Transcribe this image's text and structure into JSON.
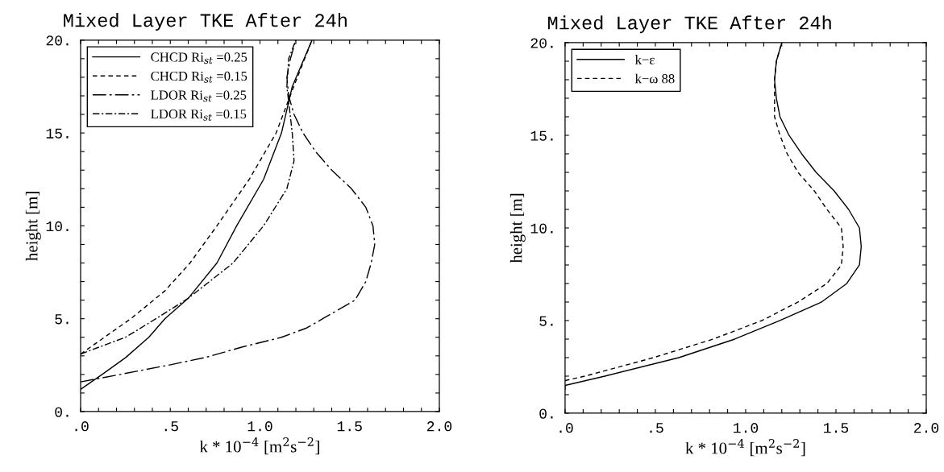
{
  "chart_data": [
    {
      "type": "line",
      "title": "Mixed Layer TKE After 24h",
      "xlabel": "k * 10$^{−4}$ [m$^{2}$s$^{−2}$]",
      "ylabel": "height [m]",
      "legend": "top left",
      "grid": false,
      "xlim": [
        0,
        2
      ],
      "ylim": [
        0,
        20
      ],
      "xticks": [
        {
          "value": 0,
          "label": ".0"
        },
        {
          "value": 0.1,
          "label": null
        },
        {
          "value": 0.2,
          "label": null
        },
        {
          "value": 0.3,
          "label": null
        },
        {
          "value": 0.4,
          "label": null
        },
        {
          "value": 0.5,
          "label": ".5"
        },
        {
          "value": 0.6,
          "label": null
        },
        {
          "value": 0.7,
          "label": null
        },
        {
          "value": 0.8,
          "label": null
        },
        {
          "value": 0.9,
          "label": null
        },
        {
          "value": 1.0,
          "label": "1.0"
        },
        {
          "value": 1.1,
          "label": null
        },
        {
          "value": 1.2,
          "label": null
        },
        {
          "value": 1.3,
          "label": null
        },
        {
          "value": 1.4,
          "label": null
        },
        {
          "value": 1.5,
          "label": "1.5"
        },
        {
          "value": 1.6,
          "label": null
        },
        {
          "value": 1.7,
          "label": null
        },
        {
          "value": 1.8,
          "label": null
        },
        {
          "value": 1.9,
          "label": null
        },
        {
          "value": 2.0,
          "label": "2.0"
        }
      ],
      "yticks": [
        {
          "value": 0,
          "label": "0."
        },
        {
          "value": 1,
          "label": null
        },
        {
          "value": 2,
          "label": null
        },
        {
          "value": 3,
          "label": null
        },
        {
          "value": 4,
          "label": null
        },
        {
          "value": 5,
          "label": "5."
        },
        {
          "value": 6,
          "label": null
        },
        {
          "value": 7,
          "label": null
        },
        {
          "value": 8,
          "label": null
        },
        {
          "value": 9,
          "label": null
        },
        {
          "value": 10,
          "label": "10."
        },
        {
          "value": 11,
          "label": null
        },
        {
          "value": 12,
          "label": null
        },
        {
          "value": 13,
          "label": null
        },
        {
          "value": 14,
          "label": null
        },
        {
          "value": 15,
          "label": "15."
        },
        {
          "value": 16,
          "label": null
        },
        {
          "value": 17,
          "label": null
        },
        {
          "value": 18,
          "label": null
        },
        {
          "value": 19,
          "label": null
        },
        {
          "value": 20,
          "label": "20."
        }
      ],
      "series": [
        {
          "name": "CHCD Ri$_{st}$ =0.25",
          "color": "#000000",
          "line_style": "solid",
          "x": [
            0,
            0.12,
            0.25,
            0.38,
            0.47,
            0.6,
            0.76,
            0.87,
            1.02,
            1.12,
            1.18,
            1.29
          ],
          "values": [
            1.2,
            2,
            2.9,
            4,
            5,
            6.1,
            8,
            10,
            12.5,
            15,
            17.5,
            20
          ]
        },
        {
          "name": "CHCD Ri$_{st}$ =0.15",
          "color": "#000000",
          "line_style": "dashed",
          "x": [
            0,
            0.28,
            0.47,
            0.61,
            0.76,
            0.94,
            1.09,
            1.18,
            1.29
          ],
          "values": [
            3.1,
            5,
            6.5,
            8,
            10,
            12.5,
            15,
            17.3,
            20
          ]
        },
        {
          "name": "LDOR Ri$_{st}$ =0.25",
          "color": "#000000",
          "line_style": "longdashdot",
          "x": [
            0,
            0.22,
            0.49,
            0.69,
            0.91,
            1.12,
            1.26,
            1.35,
            1.53,
            1.59,
            1.62,
            1.64,
            1.63,
            1.59,
            1.51,
            1.4,
            1.31,
            1.24,
            1.19,
            1.16,
            1.15,
            1.17,
            1.2
          ],
          "values": [
            1.6,
            2,
            2.5,
            2.9,
            3.5,
            4,
            4.5,
            5,
            6,
            7,
            8,
            9,
            10,
            11,
            12,
            13,
            14,
            15,
            16,
            17,
            18,
            19,
            20
          ]
        },
        {
          "name": "LDOR Ri$_{st}$ =0.15",
          "color": "#000000",
          "line_style": "dashdot",
          "x": [
            0,
            0.25,
            0.42,
            0.6,
            0.85,
            1.02,
            1.15,
            1.19,
            1.18,
            1.15,
            1.16,
            1.2
          ],
          "values": [
            3.1,
            4,
            5,
            6.1,
            8,
            10,
            12,
            13.5,
            15,
            17.5,
            19,
            20
          ]
        }
      ]
    },
    {
      "type": "line",
      "title": "Mixed Layer TKE After 24h",
      "xlabel": "k * 10$^{−4}$ [m$^{2}$s$^{−2}$]",
      "ylabel": "height [m]",
      "legend": "top left",
      "grid": false,
      "xlim": [
        0,
        2
      ],
      "ylim": [
        0,
        20
      ],
      "xticks": [
        {
          "value": 0,
          "label": ".0"
        },
        {
          "value": 0.1,
          "label": null
        },
        {
          "value": 0.2,
          "label": null
        },
        {
          "value": 0.3,
          "label": null
        },
        {
          "value": 0.4,
          "label": null
        },
        {
          "value": 0.5,
          "label": ".5"
        },
        {
          "value": 0.6,
          "label": null
        },
        {
          "value": 0.7,
          "label": null
        },
        {
          "value": 0.8,
          "label": null
        },
        {
          "value": 0.9,
          "label": null
        },
        {
          "value": 1.0,
          "label": "1.0"
        },
        {
          "value": 1.1,
          "label": null
        },
        {
          "value": 1.2,
          "label": null
        },
        {
          "value": 1.3,
          "label": null
        },
        {
          "value": 1.4,
          "label": null
        },
        {
          "value": 1.5,
          "label": "1.5"
        },
        {
          "value": 1.6,
          "label": null
        },
        {
          "value": 1.7,
          "label": null
        },
        {
          "value": 1.8,
          "label": null
        },
        {
          "value": 1.9,
          "label": null
        },
        {
          "value": 2.0,
          "label": "2.0"
        }
      ],
      "yticks": [
        {
          "value": 0,
          "label": "0."
        },
        {
          "value": 1,
          "label": null
        },
        {
          "value": 2,
          "label": null
        },
        {
          "value": 3,
          "label": null
        },
        {
          "value": 4,
          "label": null
        },
        {
          "value": 5,
          "label": "5."
        },
        {
          "value": 6,
          "label": null
        },
        {
          "value": 7,
          "label": null
        },
        {
          "value": 8,
          "label": null
        },
        {
          "value": 9,
          "label": null
        },
        {
          "value": 10,
          "label": "10."
        },
        {
          "value": 11,
          "label": null
        },
        {
          "value": 12,
          "label": null
        },
        {
          "value": 13,
          "label": null
        },
        {
          "value": 14,
          "label": null
        },
        {
          "value": 15,
          "label": "15."
        },
        {
          "value": 16,
          "label": null
        },
        {
          "value": 17,
          "label": null
        },
        {
          "value": 18,
          "label": null
        },
        {
          "value": 19,
          "label": null
        },
        {
          "value": 20,
          "label": "20."
        }
      ],
      "series": [
        {
          "name": "k−ε",
          "color": "#000000",
          "line_style": "solid",
          "x": [
            0,
            0,
            0.22,
            0.63,
            0.94,
            1.19,
            1.42,
            1.56,
            1.63,
            1.64,
            1.63,
            1.57,
            1.49,
            1.39,
            1.31,
            1.24,
            1.19,
            1.17,
            1.16,
            1.17,
            1.2
          ],
          "values": [
            1.3,
            1.5,
            2,
            3,
            4,
            5,
            6,
            7,
            8,
            9,
            10,
            11,
            12,
            13,
            14,
            15,
            16,
            17,
            18,
            19,
            20
          ]
        },
        {
          "name": "k−ω 88",
          "color": "#000000",
          "line_style": "dashed",
          "x": [
            0,
            0.11,
            0.49,
            0.82,
            1.09,
            1.29,
            1.45,
            1.53,
            1.54,
            1.53,
            1.45,
            1.38,
            1.29,
            1.23,
            1.19,
            1.16,
            1.16,
            1.16,
            1.17,
            1.2
          ],
          "values": [
            1.76,
            2,
            3,
            4,
            5,
            6,
            7,
            8,
            9,
            10,
            11,
            12,
            13,
            14,
            15,
            16,
            17,
            18,
            19,
            20
          ]
        }
      ]
    }
  ]
}
